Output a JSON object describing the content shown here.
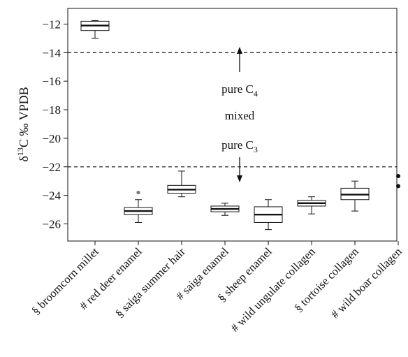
{
  "chart_data": {
    "type": "boxplot",
    "ylabel": {
      "delta": "δ",
      "sup": "13",
      "rest": "C ‰ VPDB"
    },
    "ylim": [
      -27.2,
      -10.9
    ],
    "y_ticks": [
      -12,
      -14,
      -16,
      -18,
      -20,
      -22,
      -24,
      -26
    ],
    "y_tick_labels": [
      "−12",
      "−14",
      "−16",
      "−18",
      "−20",
      "−22",
      "−24",
      "−26"
    ],
    "grid": false,
    "reference_lines": [
      {
        "y": -14,
        "style": "dashed"
      },
      {
        "y": -22,
        "style": "dashed"
      }
    ],
    "annotations": {
      "pure_c4": {
        "text": "pure C",
        "sub": "4"
      },
      "mixed": {
        "text": "mixed"
      },
      "pure_c3": {
        "text": "pure C",
        "sub": "3"
      }
    },
    "categories": [
      "§ broomcorn millet",
      "# red deer enamel",
      "§ saiga summer hair",
      "# saiga enamel",
      "§ sheep enamel",
      "# wild ungulate collagen",
      "§ tortoise collagen",
      "# wild boar collagen"
    ],
    "boxes": [
      {
        "category": "§ broomcorn millet",
        "whisker_low": -13.0,
        "q1": -12.45,
        "median": -12.1,
        "q3": -11.8,
        "whisker_high": -11.75,
        "outliers": []
      },
      {
        "category": "# red deer enamel",
        "whisker_low": -25.9,
        "q1": -25.35,
        "median": -25.1,
        "q3": -24.85,
        "whisker_high": -24.3,
        "outliers": [
          -23.8
        ]
      },
      {
        "category": "§ saiga summer hair",
        "whisker_low": -24.1,
        "q1": -23.85,
        "median": -23.6,
        "q3": -23.3,
        "whisker_high": -22.3,
        "outliers": []
      },
      {
        "category": "# saiga enamel",
        "whisker_low": -25.4,
        "q1": -25.15,
        "median": -24.95,
        "q3": -24.75,
        "whisker_high": -24.55,
        "outliers": []
      },
      {
        "category": "§ sheep enamel",
        "whisker_low": -26.4,
        "q1": -25.9,
        "median": -25.35,
        "q3": -24.8,
        "whisker_high": -24.3,
        "outliers": []
      },
      {
        "category": "# wild ungulate collagen",
        "whisker_low": -25.3,
        "q1": -24.75,
        "median": -24.55,
        "q3": -24.35,
        "whisker_high": -24.1,
        "outliers": []
      },
      {
        "category": "§ tortoise collagen",
        "whisker_low": -25.1,
        "q1": -24.3,
        "median": -23.95,
        "q3": -23.5,
        "whisker_high": -23.0,
        "outliers": []
      },
      {
        "category": "# wild boar collagen",
        "whisker_low": null,
        "q1": null,
        "median": null,
        "q3": null,
        "whisker_high": null,
        "outliers": [
          -22.65,
          -23.35
        ]
      }
    ]
  }
}
